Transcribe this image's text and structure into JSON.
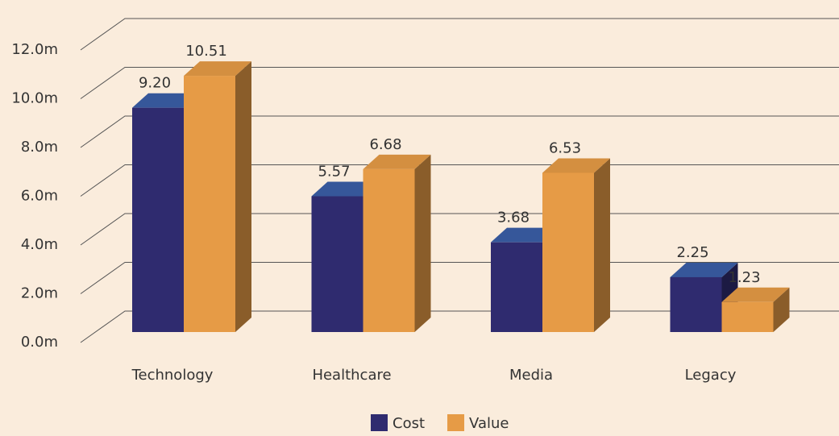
{
  "chart_data": {
    "type": "bar",
    "three_d": true,
    "categories": [
      "Technology",
      "Healthcare",
      "Media",
      "Legacy"
    ],
    "series": [
      {
        "name": "Cost",
        "color": "#2f2b6f",
        "values": [
          9.2,
          5.57,
          3.68,
          2.25
        ],
        "value_labels": [
          "9.20",
          "5.57",
          "3.68",
          "2.25"
        ]
      },
      {
        "name": "Value",
        "color": "#e69b46",
        "values": [
          10.51,
          6.68,
          6.53,
          1.23
        ],
        "value_labels": [
          "10.51",
          "6.68",
          "6.53",
          "1.23"
        ]
      }
    ],
    "ylim": [
      0,
      12
    ],
    "yticks": [
      {
        "value": 0,
        "label": "0.0m"
      },
      {
        "value": 2,
        "label": "2.0m"
      },
      {
        "value": 4,
        "label": "4.0m"
      },
      {
        "value": 6,
        "label": "6.0m"
      },
      {
        "value": 8,
        "label": "8.0m"
      },
      {
        "value": 10,
        "label": "10.0m"
      },
      {
        "value": 12,
        "label": "12.0m"
      }
    ],
    "grid": true,
    "legend": "bottom"
  }
}
